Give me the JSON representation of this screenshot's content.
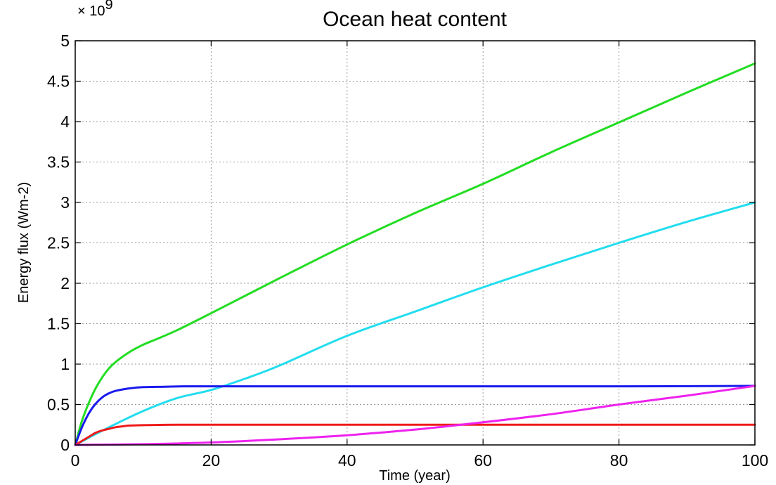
{
  "chart_data": {
    "type": "line",
    "title": "Ocean heat content",
    "xlabel": "Time (year)",
    "ylabel": "Energy flux (Wm-2)",
    "y_multiplier": "× 10",
    "y_exponent": "9",
    "xlim": [
      0,
      100
    ],
    "ylim": [
      0,
      5
    ],
    "xticks": [
      0,
      20,
      40,
      60,
      80,
      100
    ],
    "xtick_labels": [
      "0",
      "20",
      "40",
      "60",
      "80",
      "100"
    ],
    "yticks": [
      0,
      0.5,
      1,
      1.5,
      2,
      2.5,
      3,
      3.5,
      4,
      4.5,
      5
    ],
    "ytick_labels": [
      "0",
      "0.5",
      "1",
      "1.5",
      "2",
      "2.5",
      "3",
      "3.5",
      "4",
      "4.5",
      "5"
    ],
    "grid": true,
    "series": [
      {
        "color": "#22dd22",
        "x": [
          0,
          1,
          2,
          3,
          4,
          5,
          6,
          8,
          10,
          12,
          15,
          20,
          30,
          40,
          50,
          60,
          70,
          80,
          90,
          100
        ],
        "y": [
          0,
          0.3,
          0.52,
          0.7,
          0.84,
          0.95,
          1.03,
          1.15,
          1.24,
          1.31,
          1.42,
          1.63,
          2.06,
          2.48,
          2.87,
          3.23,
          3.62,
          3.99,
          4.36,
          4.72
        ]
      },
      {
        "color": "#22ddee",
        "x": [
          0,
          5,
          10,
          15,
          20,
          25,
          30,
          40,
          50,
          60,
          70,
          80,
          90,
          100
        ],
        "y": [
          0,
          0.22,
          0.42,
          0.58,
          0.68,
          0.82,
          0.98,
          1.35,
          1.65,
          1.95,
          2.23,
          2.5,
          2.76,
          3.0
        ]
      },
      {
        "color": "#1a1aee",
        "x": [
          0,
          1,
          2,
          3,
          4,
          5,
          6,
          8,
          10,
          13,
          16,
          20,
          40,
          60,
          80,
          100
        ],
        "y": [
          0,
          0.22,
          0.39,
          0.51,
          0.59,
          0.64,
          0.67,
          0.7,
          0.715,
          0.72,
          0.725,
          0.725,
          0.725,
          0.725,
          0.725,
          0.73
        ]
      },
      {
        "color": "#ee1a1a",
        "x": [
          0,
          1,
          2,
          3,
          4,
          5,
          6,
          7,
          8,
          10,
          15,
          20,
          40,
          60,
          80,
          100
        ],
        "y": [
          0,
          0.05,
          0.1,
          0.15,
          0.18,
          0.2,
          0.22,
          0.23,
          0.24,
          0.245,
          0.25,
          0.25,
          0.25,
          0.25,
          0.25,
          0.25
        ]
      },
      {
        "color": "#ee22ee",
        "x": [
          0,
          10,
          20,
          30,
          40,
          50,
          60,
          70,
          80,
          90,
          100
        ],
        "y": [
          0,
          0.01,
          0.03,
          0.07,
          0.12,
          0.19,
          0.28,
          0.38,
          0.5,
          0.61,
          0.73
        ]
      }
    ]
  }
}
